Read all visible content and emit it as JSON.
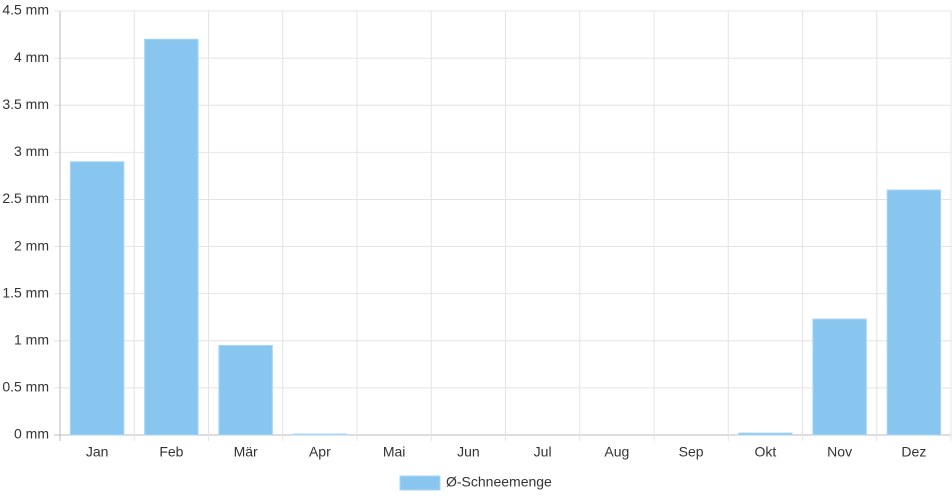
{
  "chart_data": {
    "type": "bar",
    "categories": [
      "Jan",
      "Feb",
      "Mär",
      "Apr",
      "Mai",
      "Jun",
      "Jul",
      "Aug",
      "Sep",
      "Okt",
      "Nov",
      "Dez"
    ],
    "series": [
      {
        "name": "Ø-Schneemenge",
        "color": "#88c6f0",
        "values": [
          2.9,
          4.2,
          0.95,
          0.01,
          0,
          0,
          0,
          0,
          0,
          0.02,
          1.23,
          2.6
        ]
      }
    ],
    "ylim": [
      0,
      4.5
    ],
    "yticks": [
      {
        "value": 0,
        "label": "0 mm"
      },
      {
        "value": 0.5,
        "label": "0.5 mm"
      },
      {
        "value": 1,
        "label": "1 mm"
      },
      {
        "value": 1.5,
        "label": "1.5 mm"
      },
      {
        "value": 2,
        "label": "2 mm"
      },
      {
        "value": 2.5,
        "label": "2.5 mm"
      },
      {
        "value": 3,
        "label": "3 mm"
      },
      {
        "value": 3.5,
        "label": "3.5 mm"
      },
      {
        "value": 4,
        "label": "4 mm"
      },
      {
        "value": 4.5,
        "label": "4.5 mm"
      }
    ],
    "grid": true,
    "legend": "bottom"
  }
}
